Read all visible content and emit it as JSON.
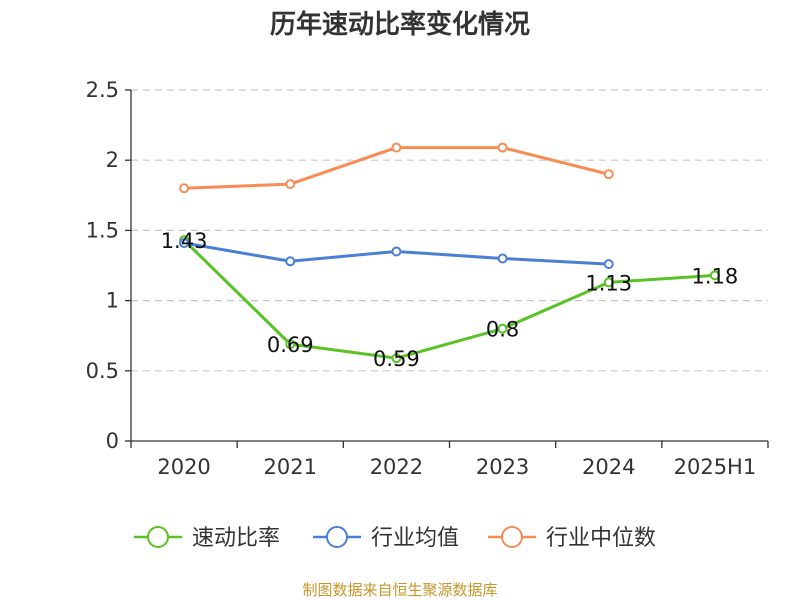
{
  "chart_data": {
    "type": "line",
    "title": "历年速动比率变化情况",
    "categories": [
      "2020",
      "2021",
      "2022",
      "2023",
      "2024",
      "2025H1"
    ],
    "ylim": [
      0,
      2.5
    ],
    "yticks": [
      "0",
      "0.5",
      "1",
      "1.5",
      "2",
      "2.5"
    ],
    "grid": true,
    "legend_position": "bottom",
    "series": [
      {
        "name": "速动比率",
        "color": "#5bc226",
        "values": [
          1.43,
          0.69,
          0.59,
          0.8,
          1.13,
          1.18
        ],
        "labels": [
          "1.43",
          "0.69",
          "0.59",
          "0.8",
          "1.13",
          "1.18"
        ]
      },
      {
        "name": "行业均值",
        "color": "#4a7fd6",
        "values": [
          1.41,
          1.28,
          1.35,
          1.3,
          1.26,
          null
        ]
      },
      {
        "name": "行业中位数",
        "color": "#f78c55",
        "values": [
          1.8,
          1.83,
          2.09,
          2.09,
          1.9,
          null
        ]
      }
    ]
  },
  "source": "制图数据来自恒生聚源数据库"
}
